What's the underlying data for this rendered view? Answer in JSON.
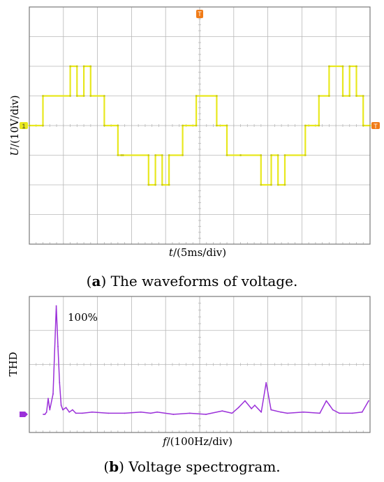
{
  "figure_a": {
    "caption_label": "a",
    "caption_text": " The waveforms of voltage.",
    "ylabel_var": "U",
    "ylabel_unit": "/(10V/div)",
    "xlabel_var": "t",
    "xlabel_unit": "/(5ms/div)",
    "channel_marker": "1",
    "trigger_marker": "T"
  },
  "figure_b": {
    "caption_label": "b",
    "caption_text": " Voltage spectrogram.",
    "ylabel": "THD",
    "xlabel_var": "f",
    "xlabel_unit": "/(100Hz/div)",
    "peak_label": "100%"
  },
  "colors": {
    "waveform": "#e8e81e",
    "spectrum": "#9b30d9",
    "trigger": "#f07b17",
    "grid": "#b8b8b8",
    "frame": "#7a7a7a"
  },
  "chart_data": [
    {
      "type": "line",
      "grid": true,
      "x_divisions": 10,
      "y_divisions": 8,
      "x_unit_per_div": "5ms",
      "y_unit_per_div": "10V",
      "xlim": [
        0,
        10
      ],
      "ylim": [
        -4,
        4
      ],
      "series": [
        {
          "x": [
            0.0,
            0.4,
            0.4,
            1.2,
            1.2,
            1.4,
            1.4,
            1.6,
            1.6,
            1.8,
            1.8,
            2.2,
            2.2,
            2.6,
            2.6,
            2.7,
            2.7,
            2.75,
            2.75,
            3.5,
            3.5,
            3.7,
            3.7,
            3.9,
            3.9,
            4.1,
            4.1,
            4.5,
            4.5,
            4.9,
            4.9,
            5.5,
            5.5,
            5.8,
            5.8,
            6.2,
            6.2,
            6.8,
            6.8,
            7.1,
            7.1,
            7.3,
            7.3,
            7.5,
            7.5,
            8.1,
            8.1,
            8.5,
            8.5,
            8.8,
            8.8,
            9.2,
            9.2,
            9.4,
            9.4,
            9.6,
            9.6,
            9.8,
            9.8,
            10.0
          ],
          "y": [
            0,
            0,
            1,
            1,
            2,
            2,
            1,
            1,
            2,
            2,
            1,
            1,
            0,
            0,
            -1,
            -1,
            -1,
            -1,
            -1,
            -1,
            -2,
            -2,
            -1,
            -1,
            -2,
            -2,
            -1,
            -1,
            0,
            0,
            1,
            1,
            0,
            0,
            -1,
            -1,
            -1,
            -1,
            -2,
            -2,
            -1,
            -1,
            -2,
            -2,
            -1,
            -1,
            0,
            0,
            1,
            1,
            2,
            2,
            1,
            1,
            2,
            2,
            1,
            1,
            0,
            0
          ]
        }
      ]
    },
    {
      "type": "line",
      "grid": true,
      "x_divisions": 10,
      "y_divisions": 4,
      "x_unit_per_div": "100Hz",
      "xlim": [
        0,
        10
      ],
      "ylim": [
        0,
        100
      ],
      "series": [
        {
          "x": [
            0.0,
            0.05,
            0.1,
            0.15,
            0.2,
            0.3,
            0.4,
            0.45,
            0.5,
            0.55,
            0.6,
            0.7,
            0.8,
            0.9,
            1.0,
            1.2,
            1.5,
            2.0,
            2.5,
            3.0,
            3.3,
            3.5,
            4.0,
            4.5,
            5.0,
            5.5,
            5.8,
            6.0,
            6.2,
            6.4,
            6.5,
            6.7,
            6.85,
            7.0,
            7.3,
            7.5,
            8.0,
            8.5,
            8.7,
            8.8,
            8.9,
            9.1,
            9.5,
            9.8,
            10.0
          ],
          "y": [
            0,
            0,
            2,
            14,
            4,
            18,
            96,
            60,
            28,
            8,
            4,
            6,
            2,
            4,
            1,
            1,
            2,
            1,
            1,
            2,
            1,
            2,
            0,
            1,
            0,
            3,
            1,
            6,
            12,
            5,
            8,
            2,
            28,
            4,
            2,
            1,
            2,
            1,
            12,
            8,
            4,
            1,
            1,
            2,
            12
          ]
        }
      ]
    }
  ]
}
